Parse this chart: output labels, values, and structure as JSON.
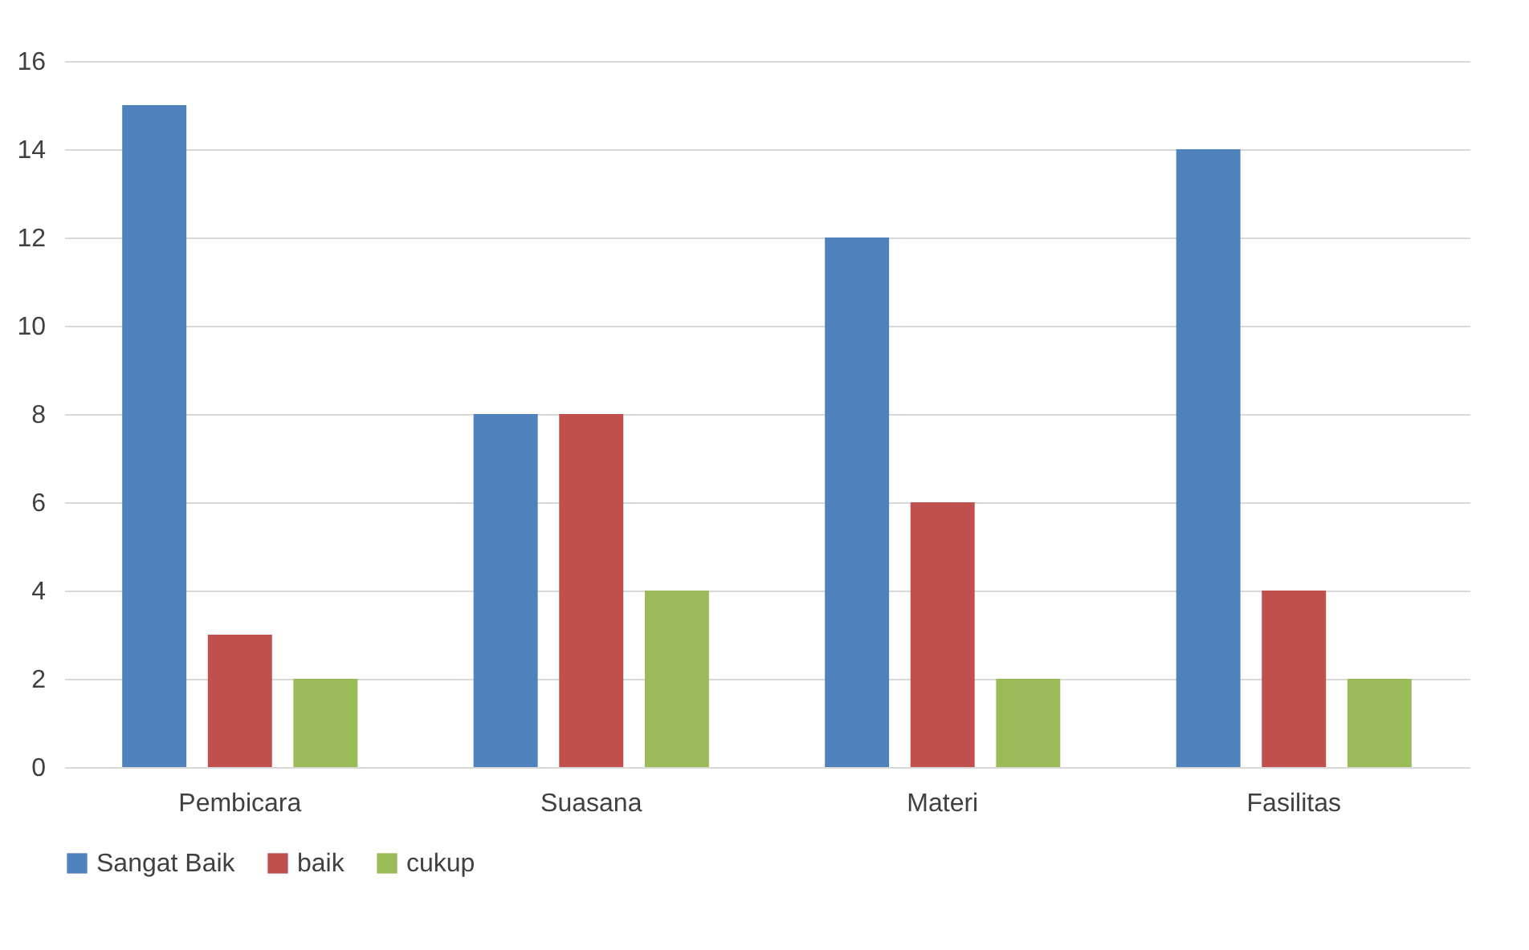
{
  "chart_data": {
    "type": "bar",
    "categories": [
      "Pembicara",
      "Suasana",
      "Materi",
      "Fasilitas"
    ],
    "series": [
      {
        "name": "Sangat Baik",
        "color": "#4f81bd",
        "values": [
          15,
          8,
          12,
          14
        ]
      },
      {
        "name": "baik",
        "color": "#c0504d",
        "values": [
          3,
          8,
          6,
          4
        ]
      },
      {
        "name": "cukup",
        "color": "#9bbb59",
        "values": [
          2,
          4,
          2,
          2
        ]
      }
    ],
    "ylim": [
      0,
      16
    ],
    "yticks": [
      0,
      2,
      4,
      6,
      8,
      10,
      12,
      14,
      16
    ],
    "grid": "y",
    "legend": "bottom"
  }
}
